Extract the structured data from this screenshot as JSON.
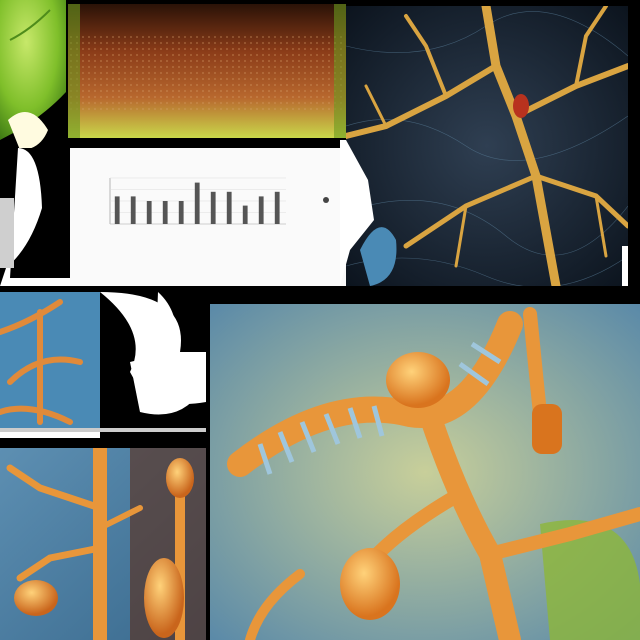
{
  "collage": {
    "panels": [
      "green-leaf-panel",
      "brown-tissue-texture-panel",
      "bar-chart-panel",
      "golden-neuron-network-panel",
      "blue-cell-structures-panel",
      "orange-dna-helix-neuron-panel",
      "orange-branching-structures-panel"
    ]
  },
  "chart_data": {
    "type": "bar",
    "categories": [
      "",
      "",
      "",
      "",
      "",
      "",
      "",
      "",
      "",
      "",
      ""
    ],
    "values": [
      6,
      6,
      5,
      5,
      5,
      9,
      7,
      7,
      4,
      6,
      7
    ],
    "title": "",
    "xlabel": "",
    "ylabel": "",
    "ylim": [
      0,
      10
    ]
  },
  "colors": {
    "accent_orange": "#e8963a",
    "neuron_gold": "#d9a441",
    "tissue_blue": "#4a8ab5",
    "leaf_green": "#7fbf2a",
    "background": "#000000"
  }
}
